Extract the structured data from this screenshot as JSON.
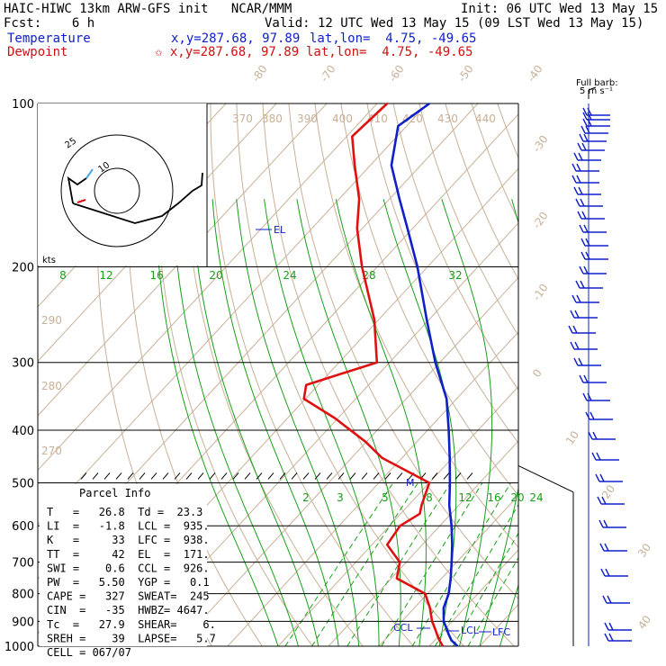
{
  "header": {
    "model": "HAIC-HIWC 13km ARW-GFS init   NCAR/MMM",
    "init": "Init: 06 UTC Wed 13 May 15",
    "fcst": "Fcst:    6 h",
    "valid": "Valid: 12 UTC Wed 13 May 15 (09 LST Wed 13 May 15)",
    "temp_label": "Temperature",
    "temp_xy": "x,y=287.68, 97.89",
    "temp_latlon": "lat,lon=  4.75, -49.65",
    "dew_label": "Dewpoint",
    "dew_xy": "✩ x,y=287.68, 97.89",
    "dew_latlon": "lat,lon=  4.75, -49.65"
  },
  "colors": {
    "temperature": "#1020c8",
    "dewpoint": "#e01010",
    "isotherm": "#c8b096",
    "mixing_ratio": "#18a018"
  },
  "chart_data": {
    "type": "line",
    "chart_kind": "skew-T log-P sounding",
    "y_axis": "pressure (hPa), log scale",
    "y_ticks": [
      100,
      200,
      300,
      400,
      500,
      600,
      700,
      800,
      900,
      1000
    ],
    "isotherm_labels": [
      "-80",
      "-70",
      "-60",
      "-50",
      "-40",
      "-30",
      "-20",
      "-10",
      "0",
      "10",
      "20",
      "30",
      "40"
    ],
    "theta_labels": [
      "370",
      "380",
      "390",
      "400",
      "410",
      "420",
      "430",
      "440",
      "290",
      "280",
      "270"
    ],
    "mixing_ratio_labels_upper": [
      "8",
      "12",
      "16",
      "20",
      "24",
      "28",
      "32"
    ],
    "mixing_ratio_labels_lower": [
      "2",
      "3",
      "5",
      "8",
      "12",
      "16",
      "20",
      "24"
    ],
    "annotations": [
      "EL",
      "M",
      "CCL",
      "LCL",
      "LFC"
    ],
    "series": [
      {
        "name": "Temperature",
        "points": [
          [
            1000,
            25.6
          ],
          [
            975,
            23.3
          ],
          [
            950,
            21.6
          ],
          [
            925,
            20.0
          ],
          [
            900,
            18.3
          ],
          [
            850,
            15.8
          ],
          [
            800,
            14.2
          ],
          [
            750,
            11.8
          ],
          [
            700,
            9.0
          ],
          [
            650,
            5.9
          ],
          [
            600,
            2.3
          ],
          [
            550,
            -1.9
          ],
          [
            500,
            -5.9
          ],
          [
            450,
            -10.5
          ],
          [
            400,
            -15.8
          ],
          [
            350,
            -22.0
          ],
          [
            300,
            -30.9
          ],
          [
            250,
            -40.5
          ],
          [
            200,
            -52.0
          ],
          [
            170,
            -61.0
          ],
          [
            150,
            -68.0
          ],
          [
            130,
            -75.8
          ],
          [
            110,
            -81.7
          ],
          [
            100,
            -79.6
          ]
        ]
      },
      {
        "name": "Dewpoint",
        "points": [
          [
            1000,
            22.7
          ],
          [
            975,
            20.9
          ],
          [
            950,
            19.3
          ],
          [
            925,
            17.7
          ],
          [
            900,
            16.0
          ],
          [
            850,
            13.1
          ],
          [
            800,
            9.5
          ],
          [
            750,
            1.1
          ],
          [
            700,
            -1.3
          ],
          [
            650,
            -7.0
          ],
          [
            600,
            -7.9
          ],
          [
            570,
            -6.2
          ],
          [
            550,
            -7.4
          ],
          [
            500,
            -10.0
          ],
          [
            450,
            -23.9
          ],
          [
            420,
            -30.2
          ],
          [
            380,
            -40.6
          ],
          [
            350,
            -50.3
          ],
          [
            330,
            -52.4
          ],
          [
            300,
            -42.5
          ],
          [
            250,
            -50.9
          ],
          [
            200,
            -63.0
          ],
          [
            170,
            -71.0
          ],
          [
            150,
            -76.0
          ],
          [
            130,
            -83.1
          ],
          [
            115,
            -88.9
          ],
          [
            100,
            -88.0
          ]
        ]
      }
    ]
  },
  "hodograph": {
    "ring_labels": [
      "25",
      "10"
    ],
    "unit": "kts"
  },
  "wind_scale_label_1": "Full barb:",
  "wind_scale_label_2": "5 m s⁻¹",
  "parcel": {
    "title": "Parcel Info",
    "rows": [
      "T   =   26.8  Td =  23.3",
      "LI  =   -1.8  LCL =  935.",
      "K   =     33  LFC =  938.",
      "TT  =     42  EL  =  171.",
      "SWI =    0.6  CCL =  926.",
      "PW  =   5.50  YGP =   0.1",
      "CAPE =   327  SWEAT=  245",
      "CIN  =   -35  HWBZ= 4647.",
      "Tc  =   27.9  SHEAR=    6.",
      "SREH =    39  LAPSE=   5.7",
      "CELL = 067/07"
    ]
  }
}
